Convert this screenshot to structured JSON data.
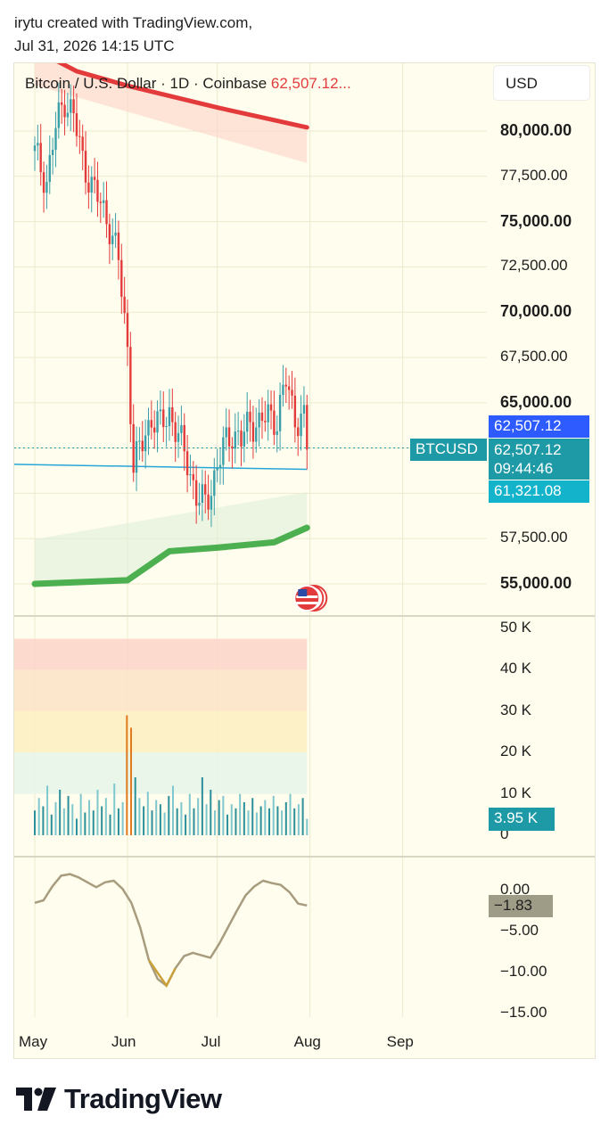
{
  "header": {
    "line1": "irytu created with TradingView.com,",
    "line2": "Jul 31, 2026 14:15 UTC"
  },
  "legend": {
    "symbol_text": "Bitcoin / U.S. Dollar · 1D · Coinbase",
    "price_text": "62,507.12..."
  },
  "currency": "USD",
  "price_axis": {
    "labels": [
      {
        "text": "80,000.00",
        "value": 80000,
        "bold": true
      },
      {
        "text": "77,500.00",
        "value": 77500,
        "bold": false
      },
      {
        "text": "75,000.00",
        "value": 75000,
        "bold": true
      },
      {
        "text": "72,500.00",
        "value": 72500,
        "bold": false
      },
      {
        "text": "70,000.00",
        "value": 70000,
        "bold": true
      },
      {
        "text": "67,500.00",
        "value": 67500,
        "bold": false
      },
      {
        "text": "65,000.00",
        "value": 65000,
        "bold": true
      },
      {
        "text": "57,500.00",
        "value": 57500,
        "bold": false
      },
      {
        "text": "55,000.00",
        "value": 55000,
        "bold": true
      }
    ]
  },
  "price_tags": {
    "current_top": "62,507.12",
    "symbol": "BTCUSD",
    "current": "62,507.12",
    "countdown": "09:44:46",
    "ma_value": "61,321.08"
  },
  "volume_axis": {
    "labels": [
      {
        "text": "50 K",
        "value": 50000
      },
      {
        "text": "40 K",
        "value": 40000
      },
      {
        "text": "30 K",
        "value": 30000
      },
      {
        "text": "20 K",
        "value": 20000
      },
      {
        "text": "10 K",
        "value": 10000
      },
      {
        "text": "0",
        "value": 0
      }
    ],
    "current_tag": "3.95 K"
  },
  "osc_axis": {
    "labels": [
      {
        "text": "0.00",
        "value": 0
      },
      {
        "text": "−5.00",
        "value": -5
      },
      {
        "text": "−10.00",
        "value": -10
      },
      {
        "text": "−15.00",
        "value": -15
      }
    ],
    "current_tag": "−1.83"
  },
  "time_axis": {
    "labels": [
      {
        "text": "May",
        "day": 0
      },
      {
        "text": "Jun",
        "day": 31
      },
      {
        "text": "Jul",
        "day": 61
      },
      {
        "text": "Aug",
        "day": 92
      },
      {
        "text": "Sep",
        "day": 123
      }
    ]
  },
  "colors": {
    "up": "#3a9fa8",
    "down": "#e33b3b",
    "upper_band": "#e33b3b",
    "lower_band": "#4caf50",
    "ma_line": "#26a6d9",
    "osc_line": "#a89c7f",
    "tag_blue": "#2d5bff",
    "tag_teal": "#1e9aa6",
    "tag_cyan": "#14b3cc",
    "tag_gray": "#9e9b86"
  },
  "brand": "TradingView",
  "chart_data": {
    "type": "candlestick",
    "x_axis": "date (2026)",
    "y_range": [
      53500,
      84000
    ],
    "current_price": 62507.12,
    "ma_value": 61321.08,
    "series": [
      {
        "name": "BTCUSD",
        "description": "daily close approximations",
        "points": [
          {
            "x": "May 01",
            "y": 78800
          },
          {
            "x": "May 05",
            "y": 77200
          },
          {
            "x": "May 08",
            "y": 80200
          },
          {
            "x": "May 11",
            "y": 81800
          },
          {
            "x": "May 14",
            "y": 80800
          },
          {
            "x": "May 17",
            "y": 78400
          },
          {
            "x": "May 20",
            "y": 77000
          },
          {
            "x": "May 23",
            "y": 76000
          },
          {
            "x": "May 26",
            "y": 74800
          },
          {
            "x": "May 29",
            "y": 72800
          },
          {
            "x": "Jun 01",
            "y": 68000
          },
          {
            "x": "Jun 03",
            "y": 61500
          },
          {
            "x": "Jun 06",
            "y": 62800
          },
          {
            "x": "Jun 09",
            "y": 64200
          },
          {
            "x": "Jun 12",
            "y": 63700
          },
          {
            "x": "Jun 15",
            "y": 64500
          },
          {
            "x": "Jun 18",
            "y": 63100
          },
          {
            "x": "Jun 21",
            "y": 61800
          },
          {
            "x": "Jun 24",
            "y": 59800
          },
          {
            "x": "Jun 27",
            "y": 59400
          },
          {
            "x": "Jun 30",
            "y": 60900
          },
          {
            "x": "Jul 03",
            "y": 62500
          },
          {
            "x": "Jul 06",
            "y": 63400
          },
          {
            "x": "Jul 09",
            "y": 62900
          },
          {
            "x": "Jul 12",
            "y": 64000
          },
          {
            "x": "Jul 15",
            "y": 63800
          },
          {
            "x": "Jul 18",
            "y": 64300
          },
          {
            "x": "Jul 21",
            "y": 64100
          },
          {
            "x": "Jul 24",
            "y": 66200
          },
          {
            "x": "Jul 27",
            "y": 64200
          },
          {
            "x": "Jul 30",
            "y": 64000
          },
          {
            "x": "Jul 31",
            "y": 62507
          }
        ]
      },
      {
        "name": "upper_band",
        "points": [
          {
            "x": "May 01",
            "y": 84500
          },
          {
            "x": "May 15",
            "y": 83300
          },
          {
            "x": "Jun 01",
            "y": 82500
          },
          {
            "x": "Jul 01",
            "y": 81300
          },
          {
            "x": "Jul 31",
            "y": 80200
          }
        ]
      },
      {
        "name": "lower_band",
        "points": [
          {
            "x": "May 01",
            "y": 55000
          },
          {
            "x": "Jun 01",
            "y": 55200
          },
          {
            "x": "Jun 15",
            "y": 56800
          },
          {
            "x": "Jul 01",
            "y": 57000
          },
          {
            "x": "Jul 20",
            "y": 57300
          },
          {
            "x": "Jul 31",
            "y": 58100
          }
        ]
      }
    ],
    "volume": {
      "range": [
        0,
        50000
      ],
      "values": [
        6000,
        9000,
        7000,
        12000,
        5000,
        8000,
        11000,
        6500,
        9500,
        7500,
        4000,
        10000,
        5500,
        8500,
        6000,
        11000,
        7000,
        9000,
        5000,
        12500,
        6500,
        8000,
        29000,
        26000,
        14000,
        9000,
        7000,
        10500,
        6000,
        8500,
        7500,
        5500,
        9500,
        12000,
        6500,
        8000,
        5000,
        10000,
        6500,
        9000,
        14000,
        7500,
        11000,
        6000,
        8500,
        9500,
        5000,
        7500,
        6500,
        10000,
        8000,
        6000,
        9000,
        5500,
        7000,
        8500,
        6500,
        9500,
        7000,
        6000,
        8000,
        10000,
        6500,
        7500,
        9000,
        3950
      ],
      "bands": [
        40000,
        30000,
        20000,
        10000
      ],
      "current": 3950
    },
    "oscillator": {
      "range": [
        -16,
        2
      ],
      "values": [
        -1.5,
        -1.2,
        0.5,
        1.8,
        2.0,
        1.6,
        1.0,
        0.4,
        1.0,
        1.2,
        0.2,
        -1.5,
        -4.5,
        -8.5,
        -10.8,
        -11.6,
        -9.5,
        -8.0,
        -7.6,
        -7.9,
        -8.2,
        -6.5,
        -4.5,
        -2.5,
        -0.6,
        0.5,
        1.2,
        0.9,
        0.7,
        -0.2,
        -1.6,
        -1.83
      ],
      "current": -1.83
    }
  }
}
